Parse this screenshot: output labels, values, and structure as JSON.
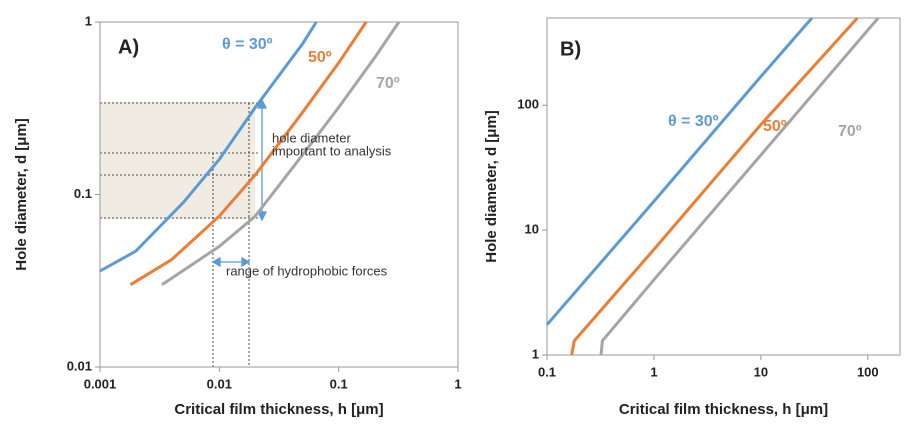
{
  "chart_data": [
    {
      "type": "line",
      "log_x": true,
      "log_y": true,
      "x_label": "Critical film thickness, h [μm]",
      "y_label": "Hole diameter, d [μm]",
      "xlim": [
        0.001,
        1
      ],
      "ylim": [
        0.01,
        1
      ],
      "xticks": [
        0.001,
        0.01,
        0.1,
        1
      ],
      "yticks": [
        0.01,
        0.1,
        1
      ],
      "annotations": [
        "A)",
        "hole diameter",
        "important to analysis",
        "range of hydrophobic forces"
      ],
      "series": [
        {
          "name": "θ = 30º",
          "color": "#5b9bd5",
          "x": [
            0.001,
            0.002,
            0.005,
            0.01,
            0.02,
            0.05,
            0.065
          ],
          "values": [
            0.036,
            0.047,
            0.09,
            0.16,
            0.32,
            0.75,
            1
          ]
        },
        {
          "name": "50º",
          "color": "#ed7d31",
          "x": [
            0.0018,
            0.004,
            0.01,
            0.02,
            0.05,
            0.1,
            0.17
          ],
          "values": [
            0.03,
            0.042,
            0.075,
            0.13,
            0.3,
            0.58,
            1
          ]
        },
        {
          "name": "70º",
          "color": "#a5a5a5",
          "x": [
            0.0033,
            0.01,
            0.02,
            0.05,
            0.1,
            0.2,
            0.32
          ],
          "values": [
            0.03,
            0.05,
            0.075,
            0.17,
            0.32,
            0.62,
            1
          ]
        }
      ]
    },
    {
      "type": "line",
      "log_x": true,
      "log_y": true,
      "x_label": "Critical film thickness, h [μm]",
      "y_label": "Hole diameter, d [μm]",
      "xlim": [
        0.1,
        200
      ],
      "ylim": [
        1,
        500
      ],
      "xticks": [
        0.1,
        1,
        10,
        100
      ],
      "yticks": [
        1,
        10,
        100
      ],
      "annotations": [
        "B)"
      ],
      "series": [
        {
          "name": "θ = 30º",
          "color": "#5b9bd5",
          "x": [
            0.1,
            1,
            10,
            30
          ],
          "values": [
            1.75,
            17,
            170,
            500
          ]
        },
        {
          "name": "50º",
          "color": "#ed7d31",
          "x": [
            0.17,
            0.18,
            1,
            10,
            80
          ],
          "values": [
            1,
            1.3,
            7,
            70,
            500
          ]
        },
        {
          "name": "70º",
          "color": "#a5a5a5",
          "x": [
            0.32,
            0.33,
            1,
            10,
            100,
            125
          ],
          "values": [
            1,
            1.3,
            4,
            40,
            400,
            500
          ]
        }
      ]
    }
  ]
}
